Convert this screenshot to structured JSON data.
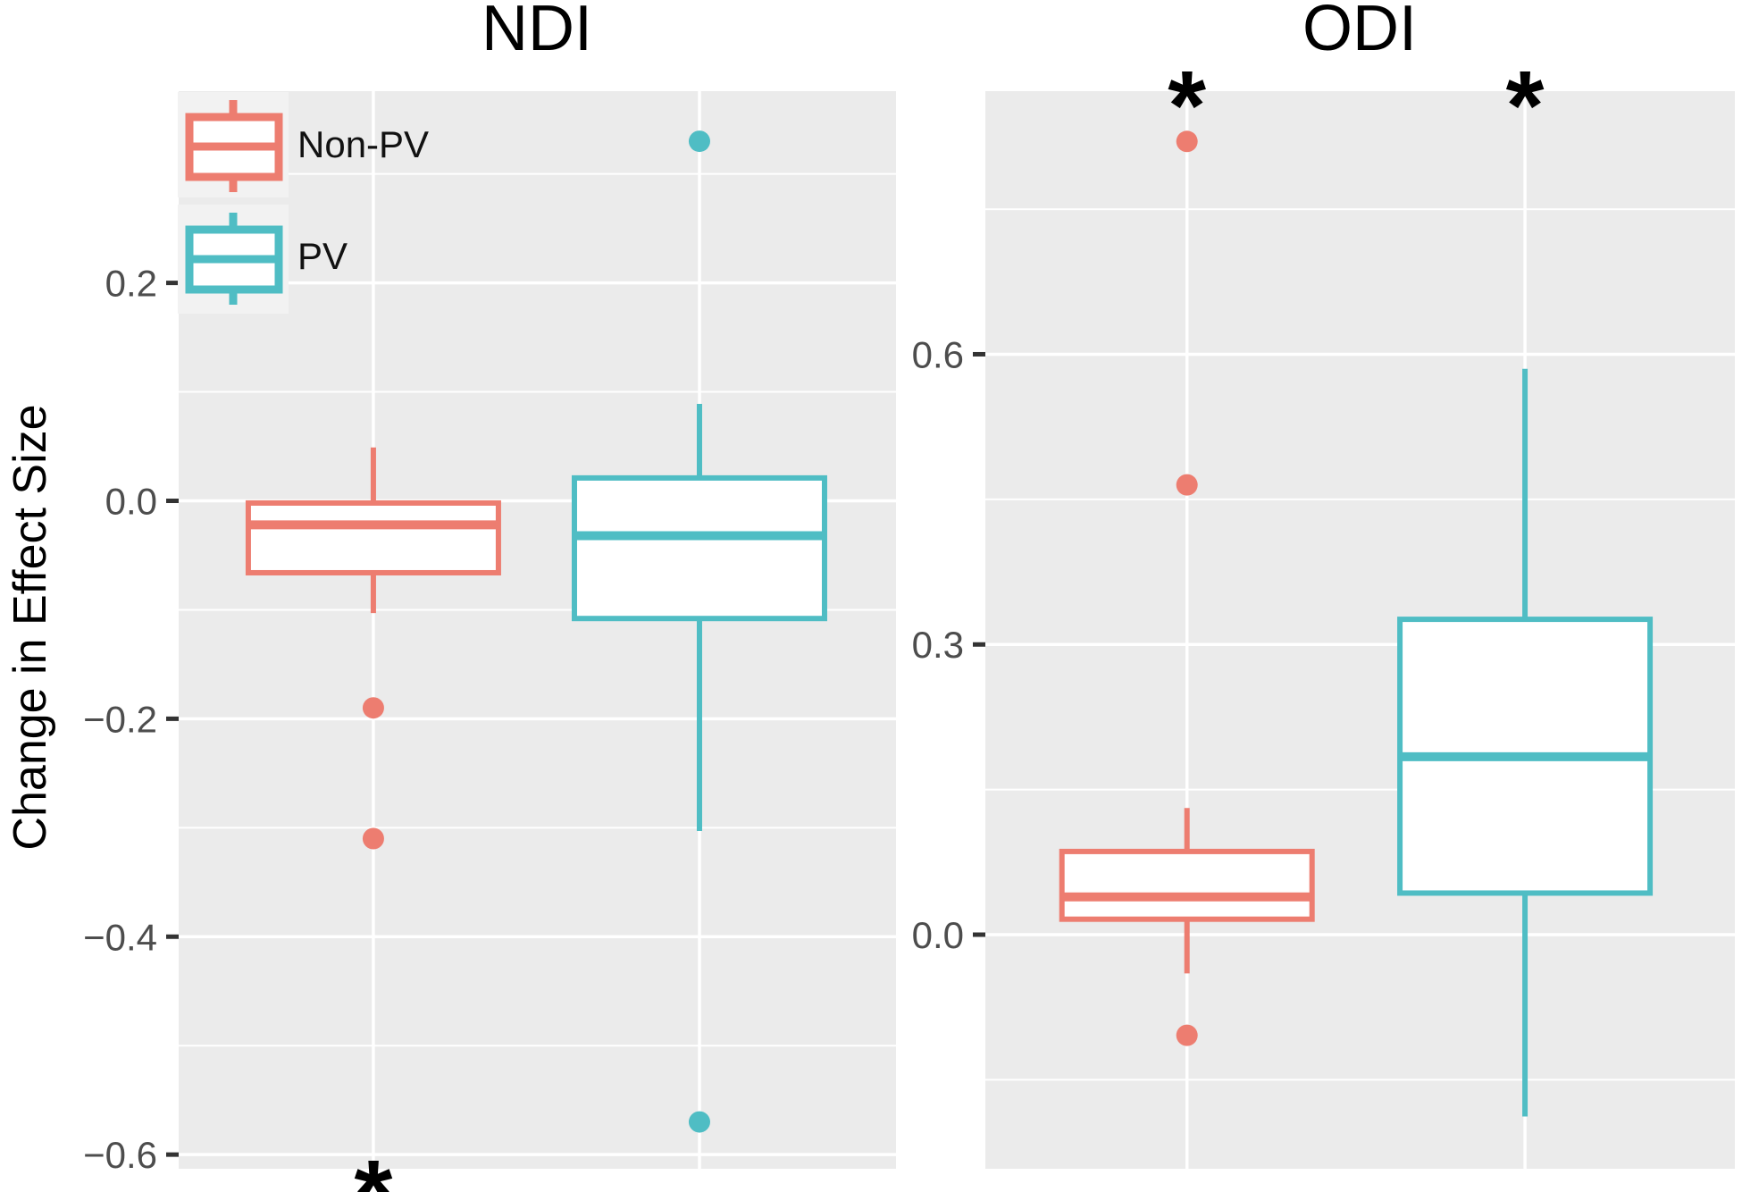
{
  "figure": {
    "y_axis_title": "Change in Effect Size",
    "sig_marker": "*"
  },
  "colors": {
    "non_pv": "#ED7D70",
    "pv": "#4FBDC4",
    "panel_bg": "#EBEBEB",
    "legend_key_bg": "#F2F2F2",
    "gridline": "#FFFFFF",
    "tick_mark": "#333333",
    "tick_label": "#4D4D4D",
    "sig": "#000000"
  },
  "legend": {
    "items": [
      {
        "label": "Non-PV",
        "color_key": "non_pv"
      },
      {
        "label": "PV",
        "color_key": "pv"
      }
    ]
  },
  "chart_data": {
    "type": "boxplot",
    "ylabel": "Change in Effect Size",
    "groups": [
      "Non-PV",
      "PV"
    ],
    "legend_position": "inside-top-left",
    "grid": "on",
    "panels": [
      {
        "title": "NDI",
        "ylim": [
          -0.613,
          0.376
        ],
        "yticks": [
          0.2,
          0.0,
          -0.2,
          -0.4,
          -0.6
        ],
        "yticklabels": [
          "0.2",
          "0.0",
          "−0.2",
          "−0.4",
          "−0.6"
        ],
        "yminor": [
          0.3,
          0.1,
          -0.1,
          -0.3,
          -0.5
        ],
        "boxes": [
          {
            "group": "Non-PV",
            "color_key": "non_pv",
            "x_frac": 0.2714,
            "q1": -0.066,
            "median": -0.022,
            "q3": -0.002,
            "whisker_low": -0.103,
            "whisker_high": 0.049,
            "outliers": [
              -0.19,
              -0.31
            ],
            "sig": "bottom"
          },
          {
            "group": "PV",
            "color_key": "pv",
            "x_frac": 0.726,
            "q1": -0.108,
            "median": -0.032,
            "q3": 0.021,
            "whisker_low": -0.303,
            "whisker_high": 0.089,
            "outliers": [
              0.33,
              -0.57
            ],
            "sig": null
          }
        ]
      },
      {
        "title": "ODI",
        "ylim": [
          -0.242,
          0.872
        ],
        "yticks": [
          0.6,
          0.3,
          0.0
        ],
        "yticklabels": [
          "0.6",
          "0.3",
          "0.0"
        ],
        "yminor": [
          0.75,
          0.45,
          0.15,
          -0.15
        ],
        "boxes": [
          {
            "group": "Non-PV",
            "color_key": "non_pv",
            "x_frac": 0.269,
            "q1": 0.016,
            "median": 0.039,
            "q3": 0.086,
            "whisker_low": -0.04,
            "whisker_high": 0.131,
            "outliers": [
              0.82,
              0.465,
              -0.104
            ],
            "sig": "top"
          },
          {
            "group": "PV",
            "color_key": "pv",
            "x_frac": 0.72,
            "q1": 0.043,
            "median": 0.184,
            "q3": 0.326,
            "whisker_low": -0.188,
            "whisker_high": 0.585,
            "outliers": [],
            "sig": "top"
          }
        ]
      }
    ]
  }
}
